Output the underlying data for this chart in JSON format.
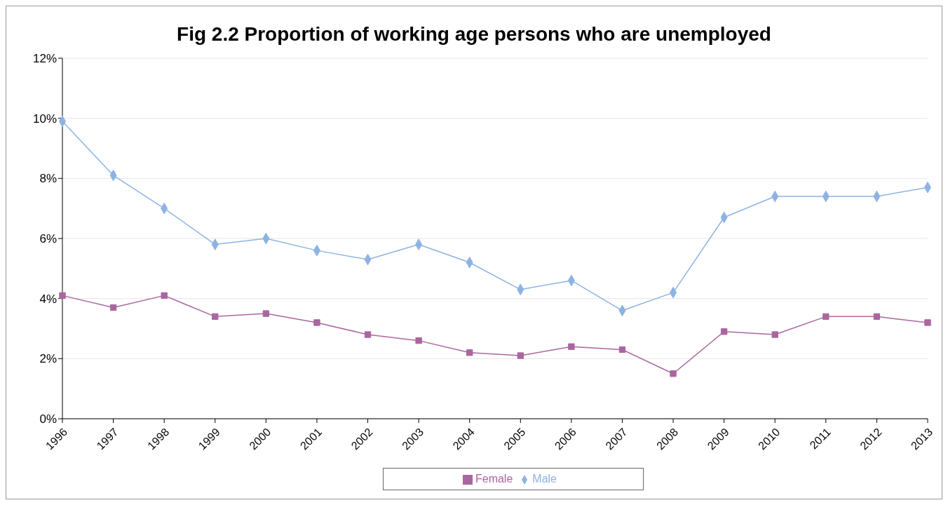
{
  "chart_data": {
    "type": "line",
    "title": "Fig 2.2 Proportion of working age persons who are unemployed",
    "categories": [
      "1996",
      "1997",
      "1998",
      "1999",
      "2000",
      "2001",
      "2002",
      "2003",
      "2004",
      "2005",
      "2006",
      "2007",
      "2008",
      "2009",
      "2010",
      "2011",
      "2012",
      "2013"
    ],
    "series": [
      {
        "name": "Male",
        "color": "#8db3e2",
        "marker": "diamond",
        "values": [
          9.9,
          8.1,
          7.0,
          5.8,
          6.0,
          5.6,
          5.3,
          5.8,
          5.2,
          4.3,
          4.6,
          3.6,
          4.2,
          6.7,
          7.4,
          7.4,
          7.4,
          7.7
        ]
      },
      {
        "name": "Female",
        "color": "#aa66a0",
        "marker": "square",
        "values": [
          4.1,
          3.7,
          4.1,
          3.4,
          3.5,
          3.2,
          2.8,
          2.6,
          2.2,
          2.1,
          2.4,
          2.3,
          1.5,
          2.9,
          2.8,
          3.4,
          3.4,
          3.2
        ]
      }
    ],
    "ylim": [
      0,
      12
    ],
    "yticks": [
      {
        "value": 0,
        "label": "0%"
      },
      {
        "value": 2,
        "label": "2%"
      },
      {
        "value": 4,
        "label": "4%"
      },
      {
        "value": 6,
        "label": "6%"
      },
      {
        "value": 8,
        "label": "8%"
      },
      {
        "value": 10,
        "label": "10%"
      },
      {
        "value": 12,
        "label": "12%"
      }
    ],
    "grid": "y",
    "legend": "bottom",
    "line_style": "solid"
  }
}
